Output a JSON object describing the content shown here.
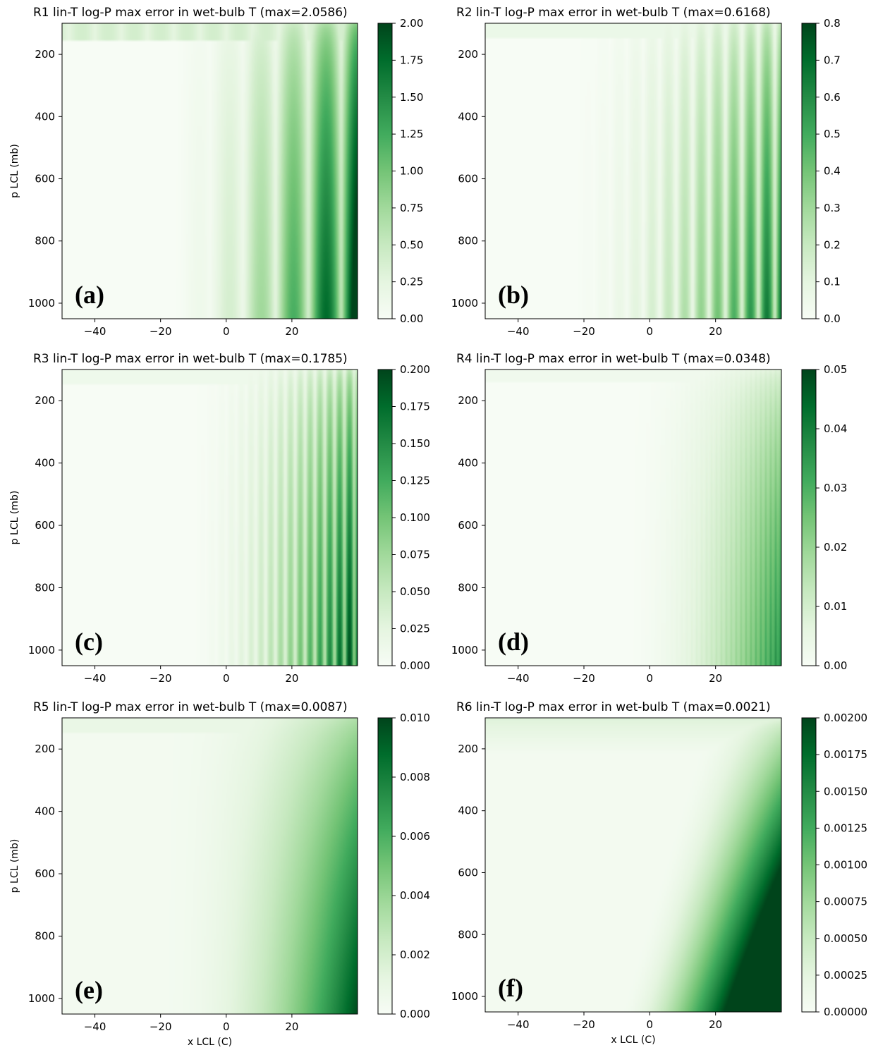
{
  "colorscale": {
    "low": "#f7fcf5",
    "mid": "#74c476",
    "high": "#00441b"
  },
  "chart_data": [
    {
      "type": "heatmap",
      "panel_label": "(a)",
      "title": "R1 lin-T log-P max error in wet-bulb T (max=2.0586)",
      "xlabel": "",
      "ylabel": "p LCL (mb)",
      "xlim": [
        -50,
        40
      ],
      "ylim": [
        1050,
        100
      ],
      "y_inverted": true,
      "xticks": [
        "−40",
        "−20",
        "0",
        "20"
      ],
      "yticks": [
        "200",
        "400",
        "600",
        "800",
        "1000"
      ],
      "colorbar": {
        "range": [
          0,
          2.0
        ],
        "ticks": [
          "0.00",
          "0.25",
          "0.50",
          "0.75",
          "1.00",
          "1.25",
          "1.50",
          "1.75",
          "2.00"
        ]
      },
      "max_value": 2.0586,
      "colormap": "Greens"
    },
    {
      "type": "heatmap",
      "panel_label": "(b)",
      "title": "R2 lin-T log-P max error in wet-bulb T (max=0.6168)",
      "xlabel": "",
      "ylabel": "",
      "xlim": [
        -50,
        40
      ],
      "ylim": [
        1050,
        100
      ],
      "y_inverted": true,
      "xticks": [
        "−40",
        "−20",
        "0",
        "20"
      ],
      "yticks": [
        "200",
        "400",
        "600",
        "800",
        "1000"
      ],
      "colorbar": {
        "range": [
          0,
          0.8
        ],
        "ticks": [
          "0.0",
          "0.1",
          "0.2",
          "0.3",
          "0.4",
          "0.5",
          "0.6",
          "0.7",
          "0.8"
        ]
      },
      "max_value": 0.6168,
      "colormap": "Greens"
    },
    {
      "type": "heatmap",
      "panel_label": "(c)",
      "title": "R3 lin-T log-P max error in wet-bulb T (max=0.1785)",
      "xlabel": "",
      "ylabel": "p LCL (mb)",
      "xlim": [
        -50,
        40
      ],
      "ylim": [
        1050,
        100
      ],
      "y_inverted": true,
      "xticks": [
        "−40",
        "−20",
        "0",
        "20"
      ],
      "yticks": [
        "200",
        "400",
        "600",
        "800",
        "1000"
      ],
      "colorbar": {
        "range": [
          0,
          0.2
        ],
        "ticks": [
          "0.000",
          "0.025",
          "0.050",
          "0.075",
          "0.100",
          "0.125",
          "0.150",
          "0.175",
          "0.200"
        ]
      },
      "max_value": 0.1785,
      "colormap": "Greens"
    },
    {
      "type": "heatmap",
      "panel_label": "(d)",
      "title": "R4 lin-T log-P max error in wet-bulb T (max=0.0348)",
      "xlabel": "",
      "ylabel": "",
      "xlim": [
        -50,
        40
      ],
      "ylim": [
        1050,
        100
      ],
      "y_inverted": true,
      "xticks": [
        "−40",
        "−20",
        "0",
        "20"
      ],
      "yticks": [
        "200",
        "400",
        "600",
        "800",
        "1000"
      ],
      "colorbar": {
        "range": [
          0,
          0.05
        ],
        "ticks": [
          "0.00",
          "0.01",
          "0.02",
          "0.03",
          "0.04",
          "0.05"
        ]
      },
      "max_value": 0.0348,
      "colormap": "Greens"
    },
    {
      "type": "heatmap",
      "panel_label": "(e)",
      "title": "R5 lin-T log-P max error in wet-bulb T (max=0.0087)",
      "xlabel": "x LCL (C)",
      "ylabel": "p LCL (mb)",
      "xlim": [
        -50,
        40
      ],
      "ylim": [
        1050,
        100
      ],
      "y_inverted": true,
      "xticks": [
        "−40",
        "−20",
        "0",
        "20"
      ],
      "yticks": [
        "200",
        "400",
        "600",
        "800",
        "1000"
      ],
      "colorbar": {
        "range": [
          0,
          0.01
        ],
        "ticks": [
          "0.000",
          "0.002",
          "0.004",
          "0.006",
          "0.008",
          "0.010"
        ]
      },
      "max_value": 0.0087,
      "colormap": "Greens"
    },
    {
      "type": "heatmap",
      "panel_label": "(f)",
      "title": "R6 lin-T log-P max error in wet-bulb T (max=0.0021)",
      "xlabel": "x LCL (C)",
      "ylabel": "",
      "xlim": [
        -50,
        40
      ],
      "ylim": [
        1050,
        100
      ],
      "y_inverted": true,
      "xticks": [
        "−40",
        "−20",
        "0",
        "20"
      ],
      "yticks": [
        "200",
        "400",
        "600",
        "800",
        "1000"
      ],
      "colorbar": {
        "range": [
          0,
          0.002
        ],
        "ticks": [
          "0.00000",
          "0.00025",
          "0.00050",
          "0.00075",
          "0.00100",
          "0.00125",
          "0.00150",
          "0.00175",
          "0.00200"
        ]
      },
      "max_value": 0.0021,
      "colormap": "Greens"
    }
  ]
}
